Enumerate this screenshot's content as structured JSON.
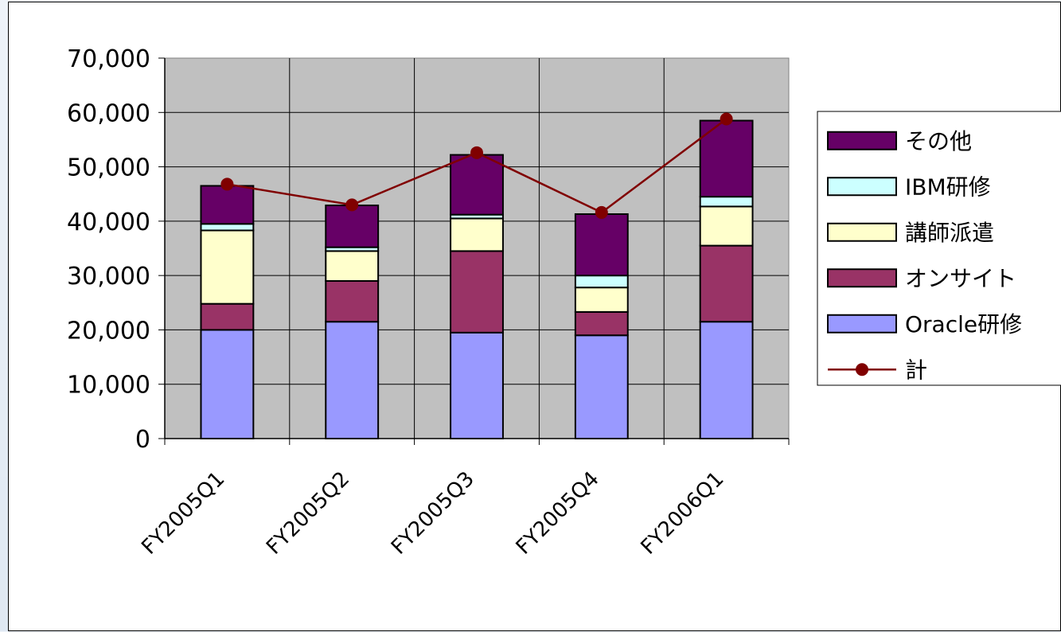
{
  "chart_data": {
    "type": "bar",
    "stacked": true,
    "categories": [
      "FY2005Q1",
      "FY2005Q2",
      "FY2005Q3",
      "FY2005Q4",
      "FY2006Q1"
    ],
    "series": [
      {
        "name": "Oracle研修",
        "values": [
          20000,
          21500,
          19500,
          19000,
          21500
        ],
        "color": "#9999ff"
      },
      {
        "name": "オンサイト",
        "values": [
          4800,
          7500,
          15000,
          4300,
          14000
        ],
        "color": "#993366"
      },
      {
        "name": "講師派遣",
        "values": [
          13500,
          5500,
          6000,
          4500,
          7200
        ],
        "color": "#ffffcc"
      },
      {
        "name": "IBM研修",
        "values": [
          1200,
          700,
          700,
          2200,
          1800
        ],
        "color": "#ccffff"
      },
      {
        "name": "その他",
        "values": [
          7000,
          7700,
          11000,
          11300,
          14000
        ],
        "color": "#660066"
      }
    ],
    "line_series": {
      "name": "計",
      "values": [
        46800,
        43000,
        52600,
        41600,
        58800
      ],
      "color": "#800000"
    },
    "title": "",
    "xlabel": "",
    "ylabel": "",
    "ylim": [
      0,
      70000
    ],
    "yticks": [
      "0",
      "10,000",
      "20,000",
      "30,000",
      "40,000",
      "50,000",
      "60,000",
      "70,000"
    ],
    "grid": true,
    "plot_background": "#c0c0c0",
    "legend_position": "right"
  }
}
